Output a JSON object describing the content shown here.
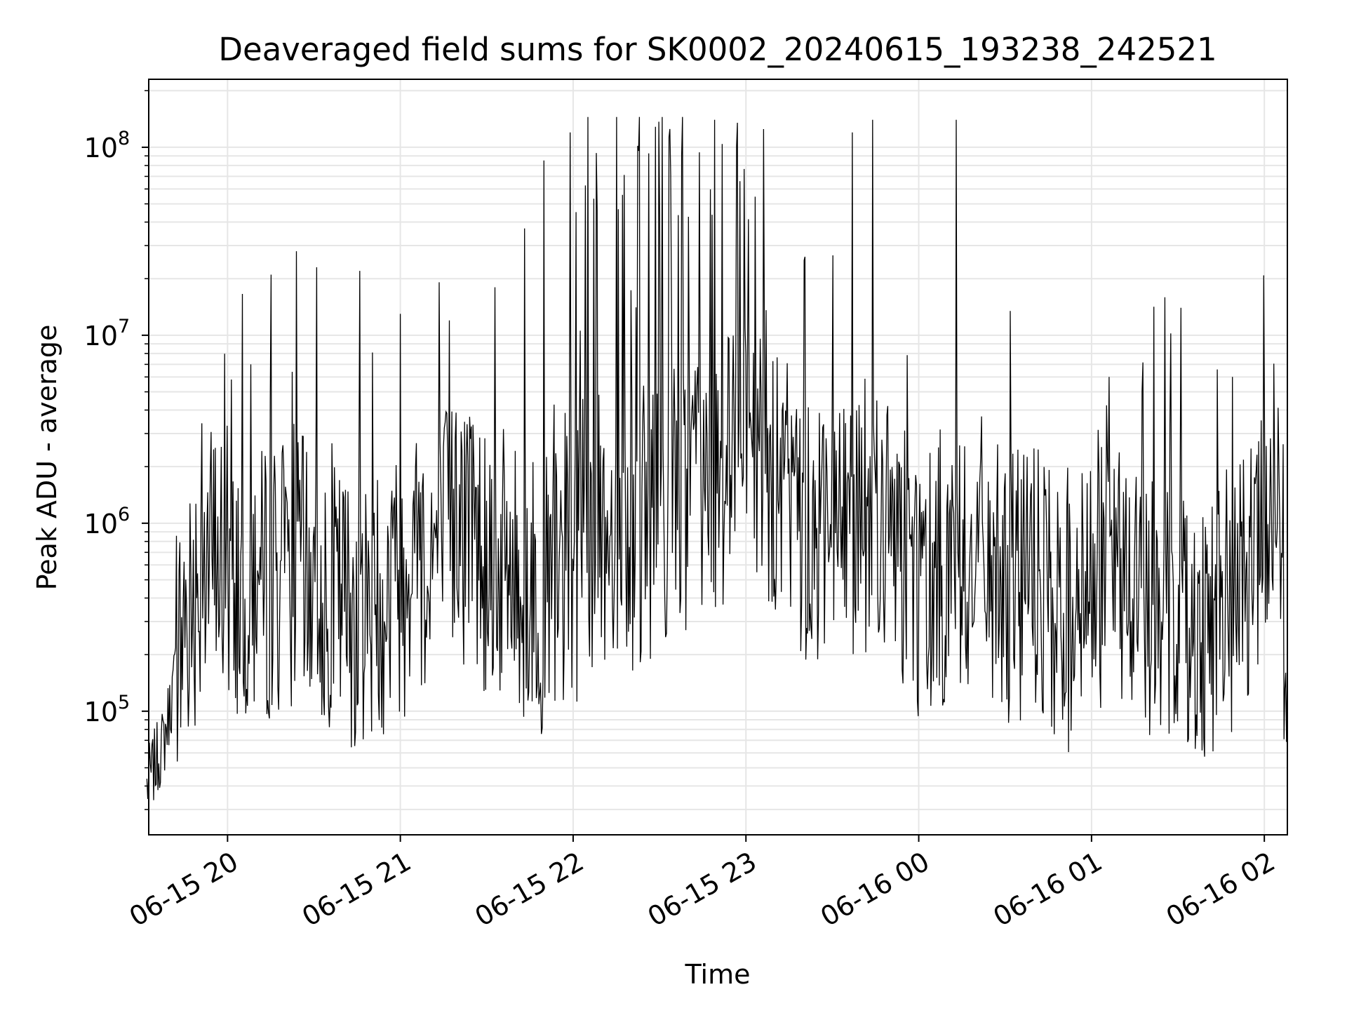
{
  "chart_data": {
    "type": "line",
    "title": "Deaveraged field sums for SK0002_20240615_193238_242521",
    "xlabel": "Time",
    "ylabel": "Peak ADU - average",
    "yscale": "log",
    "xlim": [
      "2024-06-15 19:32:38",
      "2024-06-16 02:08:00"
    ],
    "ylim": [
      22000,
      230000000
    ],
    "grid": true,
    "line_color": "#000000",
    "grid_color": "#e6e6e6",
    "x_ticks": [
      "06-15 20",
      "06-15 21",
      "06-15 22",
      "06-15 23",
      "06-16 00",
      "06-16 01",
      "06-16 02"
    ],
    "y_ticks": [
      {
        "base": "10",
        "exp": "5"
      },
      {
        "base": "10",
        "exp": "6"
      },
      {
        "base": "10",
        "exp": "7"
      },
      {
        "base": "10",
        "exp": "8"
      }
    ],
    "series": [
      {
        "x": [
          "2024-06-15 19:32",
          "2024-06-15 19:38",
          "2024-06-15 19:45",
          "2024-06-15 19:52",
          "2024-06-15 19:58",
          "2024-06-15 20:05",
          "2024-06-15 20:12",
          "2024-06-15 20:20",
          "2024-06-15 20:28",
          "2024-06-15 20:36",
          "2024-06-15 20:45",
          "2024-06-15 20:53",
          "2024-06-15 21:00",
          "2024-06-15 21:10",
          "2024-06-15 21:20",
          "2024-06-15 21:30",
          "2024-06-15 21:40",
          "2024-06-15 21:50",
          "2024-06-15 22:00",
          "2024-06-15 22:10",
          "2024-06-15 22:20",
          "2024-06-15 22:30",
          "2024-06-15 22:40",
          "2024-06-15 22:50",
          "2024-06-15 23:00",
          "2024-06-15 23:10",
          "2024-06-15 23:20",
          "2024-06-15 23:30",
          "2024-06-15 23:40",
          "2024-06-15 23:50",
          "2024-06-16 00:00",
          "2024-06-16 00:10",
          "2024-06-16 00:20",
          "2024-06-16 00:30",
          "2024-06-16 00:40",
          "2024-06-16 00:50",
          "2024-06-16 01:00",
          "2024-06-16 01:10",
          "2024-06-16 01:20",
          "2024-06-16 01:30",
          "2024-06-16 01:40",
          "2024-06-16 01:50",
          "2024-06-16 02:00",
          "2024-06-16 02:05",
          "2024-06-16 02:08"
        ],
        "y": [
          40000,
          70000,
          300000,
          700000,
          600000,
          500000,
          450000,
          600000,
          500000,
          400000,
          350000,
          400000,
          500000,
          700000,
          900000,
          700000,
          500000,
          400000,
          600000,
          900000,
          800000,
          1200000,
          1500000,
          1800000,
          2000000,
          1400000,
          1000000,
          900000,
          1200000,
          800000,
          500000,
          600000,
          700000,
          500000,
          400000,
          300000,
          450000,
          500000,
          400000,
          350000,
          300000,
          400000,
          800000,
          850000,
          130000
        ],
        "peaks": [
          {
            "x": "2024-06-15 19:51",
            "y": 3400000
          },
          {
            "x": "2024-06-15 20:00",
            "y": 3300000
          },
          {
            "x": "2024-06-15 20:08",
            "y": 7000000
          },
          {
            "x": "2024-06-15 20:15",
            "y": 21000000
          },
          {
            "x": "2024-06-15 20:24",
            "y": 28000000
          },
          {
            "x": "2024-06-15 20:31",
            "y": 23000000
          },
          {
            "x": "2024-06-15 20:46",
            "y": 22000000
          },
          {
            "x": "2024-06-15 21:00",
            "y": 13000000
          },
          {
            "x": "2024-06-15 21:17",
            "y": 12000000
          },
          {
            "x": "2024-06-15 21:33",
            "y": 18000000
          },
          {
            "x": "2024-06-15 21:43",
            "y": 37000000
          },
          {
            "x": "2024-06-15 21:50",
            "y": 85000000
          },
          {
            "x": "2024-06-15 21:59",
            "y": 120000000
          },
          {
            "x": "2024-06-15 22:05",
            "y": 145000000
          },
          {
            "x": "2024-06-15 22:15",
            "y": 145000000
          },
          {
            "x": "2024-06-15 22:23",
            "y": 145000000
          },
          {
            "x": "2024-06-15 22:31",
            "y": 145000000
          },
          {
            "x": "2024-06-15 22:38",
            "y": 145000000
          },
          {
            "x": "2024-06-15 22:49",
            "y": 140000000
          },
          {
            "x": "2024-06-15 22:57",
            "y": 135000000
          },
          {
            "x": "2024-06-15 23:06",
            "y": 125000000
          },
          {
            "x": "2024-06-15 23:37",
            "y": 120000000
          },
          {
            "x": "2024-06-15 23:44",
            "y": 140000000
          },
          {
            "x": "2024-06-16 00:13",
            "y": 140000000
          },
          {
            "x": "2024-06-16 00:40",
            "y": 2500000
          },
          {
            "x": "2024-06-16 01:06",
            "y": 6000000
          },
          {
            "x": "2024-06-16 01:31",
            "y": 14000000
          },
          {
            "x": "2024-06-16 01:49",
            "y": 6000000
          },
          {
            "x": "2024-06-16 02:00",
            "y": 3000000
          }
        ]
      }
    ]
  }
}
